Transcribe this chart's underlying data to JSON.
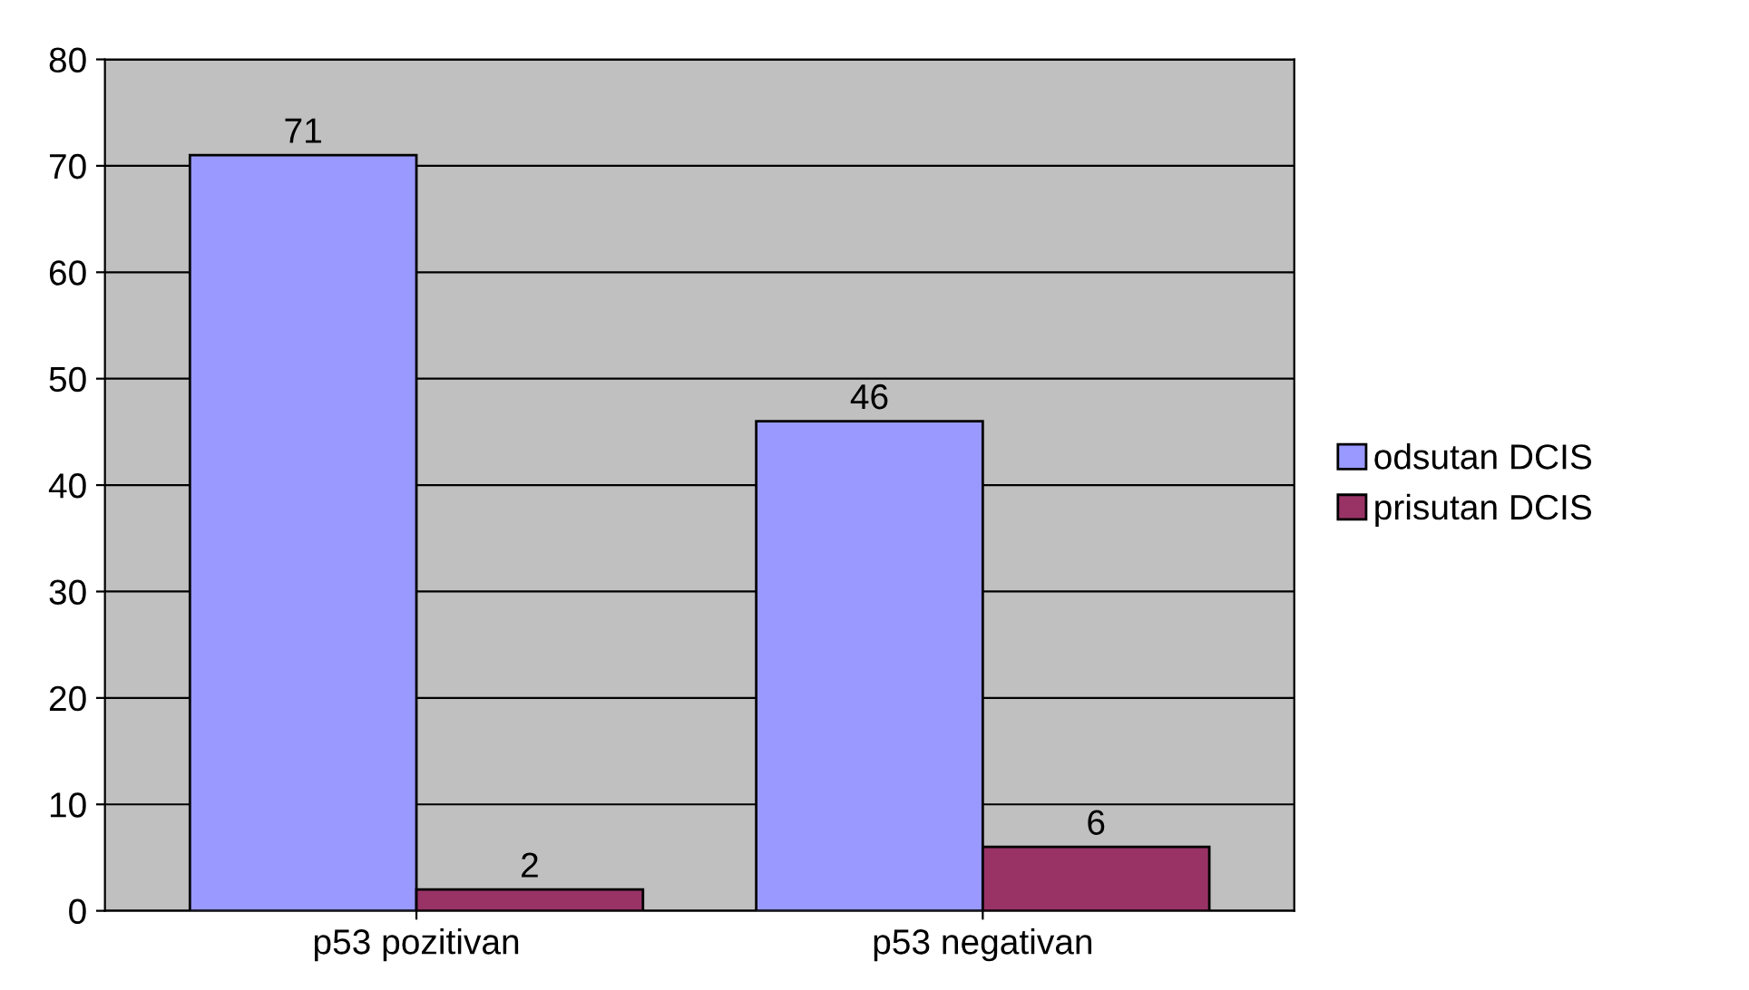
{
  "chart_data": {
    "type": "bar",
    "categories": [
      "p53 pozitivan",
      "p53 negativan"
    ],
    "series": [
      {
        "name": "odsutan DCIS",
        "color": "#9999ff",
        "values": [
          71,
          46
        ]
      },
      {
        "name": "prisutan DCIS",
        "color": "#993366",
        "values": [
          2,
          6
        ]
      }
    ],
    "ylim": [
      0,
      80
    ],
    "yticks": [
      0,
      10,
      20,
      30,
      40,
      50,
      60,
      70,
      80
    ],
    "grid": "y",
    "legend": "right",
    "data_labels": true
  }
}
